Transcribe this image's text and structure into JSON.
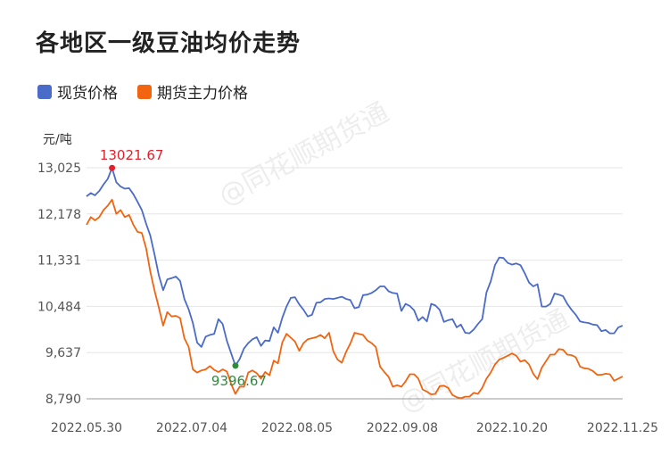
{
  "title": "各地区一级豆油均价走势",
  "unit": "元/吨",
  "watermark": "@同花顺期货通",
  "colors": {
    "spot": "#4a6bc8",
    "futures": "#f2640f",
    "max_marker": "#e0202a",
    "min_marker": "#2e8b3a"
  },
  "chart_data": {
    "type": "line",
    "title": "各地区一级豆油均价走势",
    "ylabel": "元/吨",
    "ylim": [
      8790,
      13025
    ],
    "yticks": [
      "13,025",
      "12,178",
      "11,331",
      "10,484",
      "9,637",
      "8,790"
    ],
    "ytick_values": [
      13025,
      12178,
      11331,
      10484,
      9637,
      8790
    ],
    "xtick_labels": [
      "2022.05.30",
      "2022.07.04",
      "2022.08.05",
      "2022.09.08",
      "2022.10.20",
      "2022.11.25"
    ],
    "grid": true,
    "legend_position": "top-left",
    "annotations": [
      {
        "label": "13021.67",
        "series": "现货价格",
        "index": 6,
        "value": 13021.67
      },
      {
        "label": "9396.67",
        "series": "现货价格",
        "index": 35,
        "value": 9396.67
      }
    ],
    "series": [
      {
        "name": "现货价格",
        "values": [
          12500,
          12560,
          12520,
          12600,
          12720,
          12820,
          13021.67,
          12760,
          12680,
          12640,
          12650,
          12540,
          12400,
          12250,
          12000,
          11780,
          11430,
          11050,
          10780,
          10980,
          11000,
          11030,
          10950,
          10620,
          10430,
          10180,
          9820,
          9740,
          9930,
          9960,
          9980,
          10250,
          10160,
          9850,
          9620,
          9396.67,
          9520,
          9710,
          9810,
          9880,
          9920,
          9760,
          9860,
          9850,
          10100,
          10000,
          10270,
          10480,
          10640,
          10650,
          10520,
          10420,
          10300,
          10330,
          10550,
          10560,
          10620,
          10630,
          10620,
          10640,
          10660,
          10620,
          10600,
          10450,
          10470,
          10690,
          10700,
          10730,
          10780,
          10850,
          10850,
          10760,
          10730,
          10720,
          10400,
          10530,
          10490,
          10410,
          10220,
          10290,
          10210,
          10530,
          10500,
          10420,
          10200,
          10230,
          10250,
          10100,
          10150,
          10000,
          9990,
          10060,
          10160,
          10250,
          10740,
          10940,
          11240,
          11380,
          11370,
          11280,
          11250,
          11270,
          11240,
          11090,
          10920,
          10850,
          10890,
          10480,
          10480,
          10530,
          10720,
          10700,
          10670,
          10530,
          10420,
          10330,
          10210,
          10190,
          10180,
          10150,
          10140,
          10030,
          10050,
          9990,
          9990,
          10100,
          10130
        ]
      },
      {
        "name": "期货主力价格",
        "values": [
          11980,
          12120,
          12060,
          12120,
          12250,
          12330,
          12440,
          12180,
          12250,
          12120,
          12160,
          11980,
          11850,
          11830,
          11550,
          11120,
          10770,
          10460,
          10130,
          10380,
          10300,
          10310,
          10270,
          9900,
          9740,
          9330,
          9270,
          9310,
          9330,
          9390,
          9320,
          9280,
          9330,
          9290,
          9060,
          8880,
          9010,
          9010,
          9270,
          9310,
          9260,
          9160,
          9280,
          9220,
          9490,
          9440,
          9820,
          9980,
          9910,
          9840,
          9670,
          9810,
          9880,
          9900,
          9920,
          9960,
          9900,
          10000,
          9660,
          9510,
          9450,
          9650,
          9800,
          10000,
          9980,
          9960,
          9860,
          9810,
          9740,
          9380,
          9280,
          9190,
          9010,
          9040,
          9010,
          9110,
          9240,
          9240,
          9160,
          8960,
          8920,
          8870,
          8880,
          9020,
          9030,
          8990,
          8860,
          8820,
          8800,
          8830,
          8830,
          8900,
          8880,
          8990,
          9160,
          9270,
          9420,
          9510,
          9540,
          9580,
          9620,
          9580,
          9470,
          9500,
          9420,
          9250,
          9150,
          9360,
          9480,
          9600,
          9600,
          9700,
          9690,
          9600,
          9590,
          9550,
          9380,
          9350,
          9340,
          9300,
          9230,
          9230,
          9250,
          9240,
          9120,
          9160,
          9200
        ]
      }
    ]
  }
}
